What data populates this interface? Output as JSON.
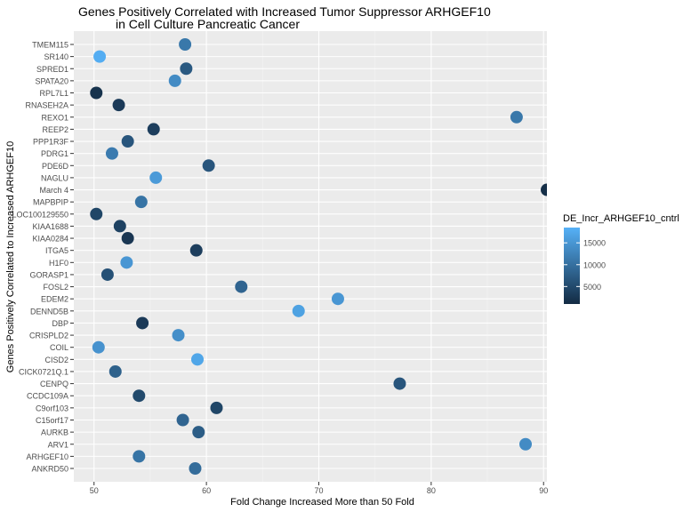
{
  "chart_data": {
    "type": "scatter",
    "title": "Genes Positively Correlated with Increased Tumor Suppressor ARHGEF10",
    "subtitle": "in Cell Culture Pancreatic Cancer",
    "xlabel": "Fold Change Increased More than 50 Fold",
    "ylabel": "Genes Positively Correlated to Increased ARHGEF10",
    "xlim": [
      48.2,
      90.3
    ],
    "x_ticks": [
      50,
      60,
      70,
      80,
      90
    ],
    "grid": true,
    "legend": {
      "title": "DE_Incr_ARHGEF10_cntrl",
      "placement": "right",
      "ticks": [
        5000,
        10000,
        15000
      ],
      "range": [
        1000,
        18500
      ],
      "low_color": "#132B43",
      "high_color": "#56B1F7"
    },
    "categories": [
      "ANKRD50",
      "ARHGEF10",
      "ARV1",
      "AURKB",
      "C15orf17",
      "C9orf103",
      "CCDC109A",
      "CENPQ",
      "CICK0721Q.1",
      "CISD2",
      "COIL",
      "CRISPLD2",
      "DBP",
      "DENND5B",
      "EDEM2",
      "FOSL2",
      "GORASP1",
      "H1F0",
      "ITGA5",
      "KIAA0284",
      "KIAA1688",
      "LOC100129550",
      "MAPBPIP",
      "March 4",
      "NAGLU",
      "PDE6D",
      "PDRG1",
      "PPP1R3F",
      "REEP2",
      "REXO1",
      "RNASEH2A",
      "RPL7L1",
      "SPATA20",
      "SPRED1",
      "SR140",
      "TMEM115"
    ],
    "points": [
      {
        "gene": "ANKRD50",
        "x": 59.0,
        "color_value": 9500
      },
      {
        "gene": "ARHGEF10",
        "x": 54.0,
        "color_value": 10500
      },
      {
        "gene": "ARV1",
        "x": 88.4,
        "color_value": 13500
      },
      {
        "gene": "AURKB",
        "x": 59.3,
        "color_value": 7500
      },
      {
        "gene": "C15orf17",
        "x": 57.9,
        "color_value": 8500
      },
      {
        "gene": "C9orf103",
        "x": 60.9,
        "color_value": 4500
      },
      {
        "gene": "CCDC109A",
        "x": 54.0,
        "color_value": 5000
      },
      {
        "gene": "CENPQ",
        "x": 77.2,
        "color_value": 6500
      },
      {
        "gene": "CICK0721Q.1",
        "x": 51.9,
        "color_value": 8000
      },
      {
        "gene": "CISD2",
        "x": 59.2,
        "color_value": 17000
      },
      {
        "gene": "COIL",
        "x": 50.4,
        "color_value": 14500
      },
      {
        "gene": "CRISPLD2",
        "x": 57.5,
        "color_value": 14000
      },
      {
        "gene": "DBP",
        "x": 54.3,
        "color_value": 3000
      },
      {
        "gene": "DENND5B",
        "x": 68.2,
        "color_value": 16500
      },
      {
        "gene": "EDEM2",
        "x": 71.7,
        "color_value": 15000
      },
      {
        "gene": "FOSL2",
        "x": 63.1,
        "color_value": 8500
      },
      {
        "gene": "GORASP1",
        "x": 51.2,
        "color_value": 6000
      },
      {
        "gene": "H1F0",
        "x": 52.9,
        "color_value": 15000
      },
      {
        "gene": "ITGA5",
        "x": 59.1,
        "color_value": 3500
      },
      {
        "gene": "KIAA0284",
        "x": 53.0,
        "color_value": 2500
      },
      {
        "gene": "KIAA1688",
        "x": 52.3,
        "color_value": 4000
      },
      {
        "gene": "LOC100129550",
        "x": 50.2,
        "color_value": 4500
      },
      {
        "gene": "MAPBPIP",
        "x": 54.2,
        "color_value": 10500
      },
      {
        "gene": "March 4",
        "x": 90.3,
        "color_value": 1500
      },
      {
        "gene": "NAGLU",
        "x": 55.5,
        "color_value": 15500
      },
      {
        "gene": "PDE6D",
        "x": 60.2,
        "color_value": 6500
      },
      {
        "gene": "PDRG1",
        "x": 51.6,
        "color_value": 11500
      },
      {
        "gene": "PPP1R3F",
        "x": 53.0,
        "color_value": 6500
      },
      {
        "gene": "REEP2",
        "x": 55.3,
        "color_value": 3500
      },
      {
        "gene": "REXO1",
        "x": 87.6,
        "color_value": 11000
      },
      {
        "gene": "RNASEH2A",
        "x": 52.2,
        "color_value": 3000
      },
      {
        "gene": "RPL7L1",
        "x": 50.2,
        "color_value": 2000
      },
      {
        "gene": "SPATA20",
        "x": 57.2,
        "color_value": 13500
      },
      {
        "gene": "SPRED1",
        "x": 58.2,
        "color_value": 7000
      },
      {
        "gene": "SR140",
        "x": 50.5,
        "color_value": 18000
      },
      {
        "gene": "TMEM115",
        "x": 58.1,
        "color_value": 11000
      }
    ]
  }
}
